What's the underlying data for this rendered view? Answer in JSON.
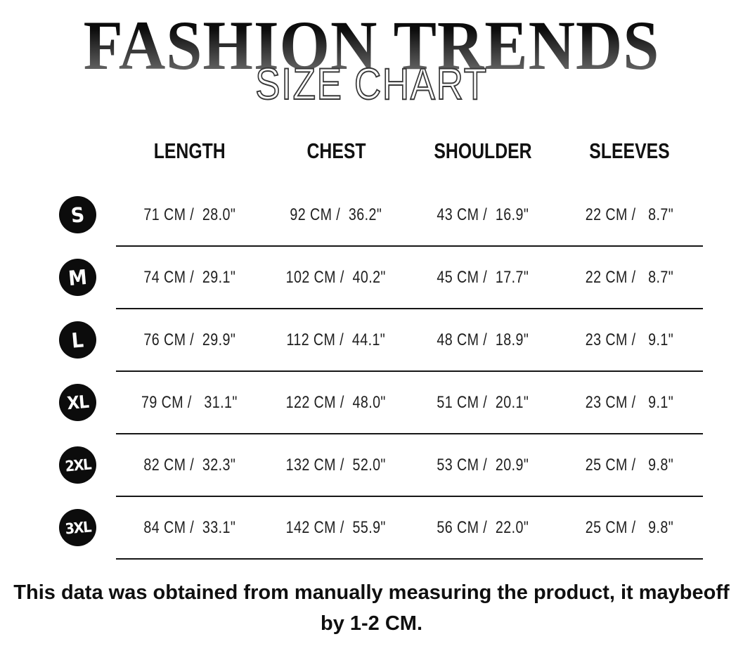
{
  "title": {
    "brand": "FASHION TRENDS",
    "subtitle": "SIZE CHART"
  },
  "table": {
    "headers": [
      "LENGTH",
      "CHEST",
      "SHOULDER",
      "SLEEVES"
    ],
    "rows": [
      {
        "size": "S",
        "length": "71 CM /  28.0\"",
        "chest": "92 CM /  36.2\"",
        "shoulder": "43 CM /  16.9\"",
        "sleeves": "22 CM /   8.7\""
      },
      {
        "size": "M",
        "length": "74 CM /  29.1\"",
        "chest": "102 CM /  40.2\"",
        "shoulder": "45 CM /  17.7\"",
        "sleeves": "22 CM /   8.7\""
      },
      {
        "size": "L",
        "length": "76 CM /  29.9\"",
        "chest": "112 CM /  44.1\"",
        "shoulder": "48 CM /  18.9\"",
        "sleeves": "23 CM /   9.1\""
      },
      {
        "size": "XL",
        "length": "79 CM /   31.1\"",
        "chest": "122 CM /  48.0\"",
        "shoulder": "51 CM /  20.1\"",
        "sleeves": "23 CM /   9.1\""
      },
      {
        "size": "2XL",
        "length": "82 CM /  32.3\"",
        "chest": "132 CM /  52.0\"",
        "shoulder": "53 CM /  20.9\"",
        "sleeves": "25 CM /   9.8\""
      },
      {
        "size": "3XL",
        "length": "84 CM /  33.1\"",
        "chest": "142 CM /  55.9\"",
        "shoulder": "56 CM /  22.0\"",
        "sleeves": "25 CM /   9.8\""
      }
    ]
  },
  "footer": {
    "line1": "This data was obtained from manually measuring the product, it maybeoff",
    "line2": "by 1-2 CM."
  },
  "colors": {
    "badge": "#0c0c0c",
    "divider": "#161616",
    "title_gradient_top": "#000000",
    "title_gradient_bottom": "#777777",
    "subtitle_outline": "#383838"
  }
}
